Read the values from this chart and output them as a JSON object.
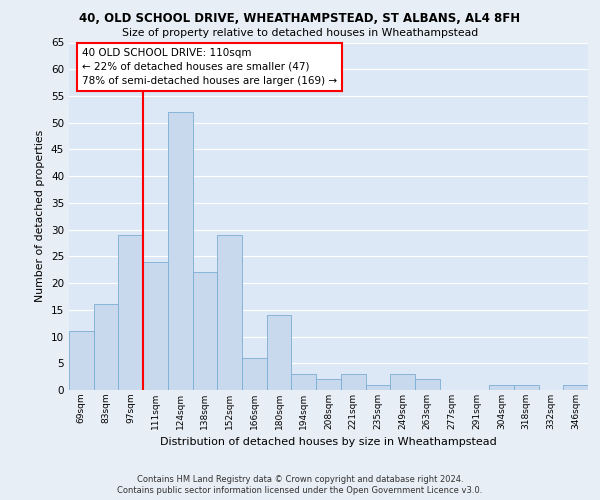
{
  "title_line1": "40, OLD SCHOOL DRIVE, WHEATHAMPSTEAD, ST ALBANS, AL4 8FH",
  "title_line2": "Size of property relative to detached houses in Wheathampstead",
  "xlabel": "Distribution of detached houses by size in Wheathampstead",
  "ylabel": "Number of detached properties",
  "categories": [
    "69sqm",
    "83sqm",
    "97sqm",
    "111sqm",
    "124sqm",
    "138sqm",
    "152sqm",
    "166sqm",
    "180sqm",
    "194sqm",
    "208sqm",
    "221sqm",
    "235sqm",
    "249sqm",
    "263sqm",
    "277sqm",
    "291sqm",
    "304sqm",
    "318sqm",
    "332sqm",
    "346sqm"
  ],
  "values": [
    11,
    16,
    29,
    24,
    52,
    22,
    29,
    6,
    14,
    3,
    2,
    3,
    1,
    3,
    2,
    0,
    0,
    1,
    1,
    0,
    1
  ],
  "bar_color": "#c8d8ed",
  "bar_edge_color": "#7aadd4",
  "annotation_text": "40 OLD SCHOOL DRIVE: 110sqm\n← 22% of detached houses are smaller (47)\n78% of semi-detached houses are larger (169) →",
  "annotation_box_color": "white",
  "annotation_box_edge_color": "red",
  "vline_x_index": 3,
  "vline_color": "red",
  "ylim": [
    0,
    65
  ],
  "yticks": [
    0,
    5,
    10,
    15,
    20,
    25,
    30,
    35,
    40,
    45,
    50,
    55,
    60,
    65
  ],
  "footer_line1": "Contains HM Land Registry data © Crown copyright and database right 2024.",
  "footer_line2": "Contains public sector information licensed under the Open Government Licence v3.0.",
  "bg_color": "#e8eef5",
  "plot_bg_color": "#dce8f5",
  "grid_color": "#c0cfe0"
}
